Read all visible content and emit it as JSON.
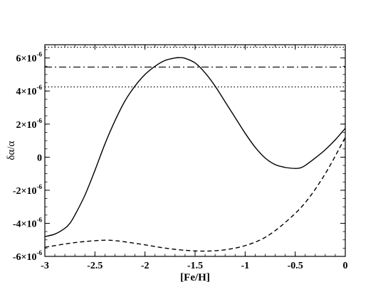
{
  "chart_data": {
    "type": "line",
    "xlabel": "[Fe/H]",
    "ylabel": "δα/α",
    "xlim": [
      -3,
      0
    ],
    "ylim": [
      -6e-06,
      6.8e-06
    ],
    "grid": false,
    "x_ticks": [
      {
        "value": -3,
        "label": "-3"
      },
      {
        "value": -2.5,
        "label": "-2.5"
      },
      {
        "value": -2,
        "label": "-2"
      },
      {
        "value": -1.5,
        "label": "-1.5"
      },
      {
        "value": -1,
        "label": "-1"
      },
      {
        "value": -0.5,
        "label": "-0.5"
      },
      {
        "value": 0,
        "label": "0"
      }
    ],
    "y_ticks": [
      {
        "value": -6e-06,
        "label": "-6×10",
        "exp": "-6"
      },
      {
        "value": -4e-06,
        "label": "-4×10",
        "exp": "-6"
      },
      {
        "value": -2e-06,
        "label": "-2×10",
        "exp": "-6"
      },
      {
        "value": 0,
        "label": "0",
        "exp": ""
      },
      {
        "value": 2e-06,
        "label": "2×10",
        "exp": "-6"
      },
      {
        "value": 4e-06,
        "label": "4×10",
        "exp": "-6"
      },
      {
        "value": 6e-06,
        "label": "6×10",
        "exp": "-6"
      }
    ],
    "horizontal_lines": [
      {
        "value": 6.65e-06,
        "style": "dotted"
      },
      {
        "value": 5.45e-06,
        "style": "dashdot"
      },
      {
        "value": 4.25e-06,
        "style": "dotted"
      }
    ],
    "series": [
      {
        "style": "solid",
        "x": [
          -3.0,
          -2.9,
          -2.8,
          -2.75,
          -2.7,
          -2.6,
          -2.5,
          -2.4,
          -2.3,
          -2.2,
          -2.1,
          -2.0,
          -1.9,
          -1.8,
          -1.7,
          -1.65,
          -1.6,
          -1.5,
          -1.4,
          -1.3,
          -1.2,
          -1.1,
          -1.0,
          -0.9,
          -0.8,
          -0.7,
          -0.6,
          -0.5,
          -0.45,
          -0.4,
          -0.3,
          -0.2,
          -0.1,
          0.0
        ],
        "y": [
          -4.8e-06,
          -4.65e-06,
          -4.3e-06,
          -4e-06,
          -3.5e-06,
          -2.3e-06,
          -8e-07,
          8e-07,
          2.2e-06,
          3.4e-06,
          4.3e-06,
          5e-06,
          5.5e-06,
          5.85e-06,
          6e-06,
          6.02e-06,
          5.98e-06,
          5.7e-06,
          5.1e-06,
          4.3e-06,
          3.35e-06,
          2.4e-06,
          1.45e-06,
          6e-07,
          -5e-08,
          -4.5e-07,
          -6.2e-07,
          -6.8e-07,
          -6.5e-07,
          -5e-07,
          -5e-08,
          4.5e-07,
          1.05e-06,
          1.75e-06
        ]
      },
      {
        "style": "dashed",
        "x": [
          -3.0,
          -2.8,
          -2.6,
          -2.4,
          -2.3,
          -2.2,
          -2.0,
          -1.8,
          -1.6,
          -1.4,
          -1.2,
          -1.0,
          -0.8,
          -0.6,
          -0.4,
          -0.2,
          0.0
        ],
        "y": [
          -5.45e-06,
          -5.25e-06,
          -5.1e-06,
          -5.02e-06,
          -5.05e-06,
          -5.12e-06,
          -5.3e-06,
          -5.5e-06,
          -5.63e-06,
          -5.68e-06,
          -5.6e-06,
          -5.35e-06,
          -4.85e-06,
          -3.95e-06,
          -2.75e-06,
          -1e-06,
          1.2e-06
        ]
      }
    ]
  }
}
